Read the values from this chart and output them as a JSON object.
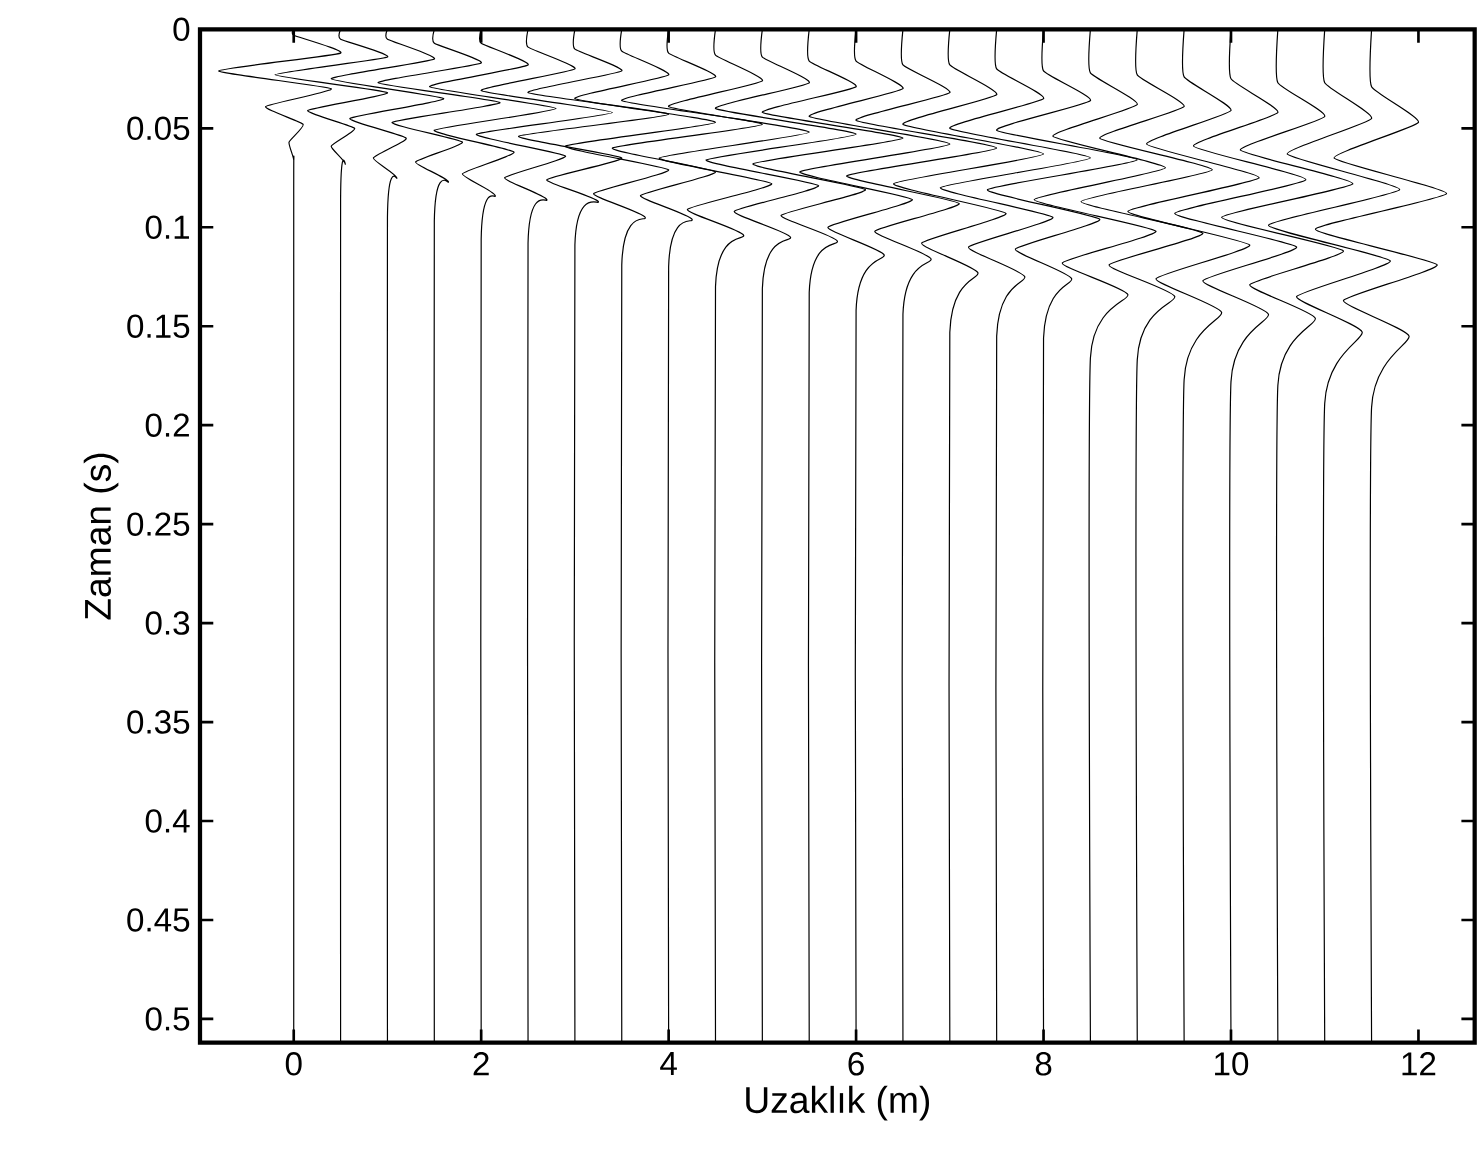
{
  "chart_data": {
    "type": "line",
    "xlabel": "Uzaklık (m)",
    "ylabel": "Zaman (s)",
    "xlim": [
      -1.0,
      12.6
    ],
    "ylim": [
      0.512,
      0
    ],
    "xticks": [
      0,
      2,
      4,
      6,
      8,
      10,
      12
    ],
    "yticks": [
      0,
      0.05,
      0.1,
      0.15,
      0.2,
      0.25,
      0.3,
      0.35,
      0.4,
      0.45,
      0.5
    ],
    "grid": false,
    "marker": "none",
    "line_style": "solid",
    "series": [
      {
        "color": "#000000",
        "x": [
          0,
          0,
          0.5,
          -0.8,
          0.4,
          -0.3,
          0.1,
          -0.05,
          0,
          0,
          0
        ],
        "values": [
          0,
          0.003,
          0.012,
          0.021,
          0.03,
          0.039,
          0.048,
          0.057,
          0.066,
          0.084,
          0.512
        ]
      },
      {
        "color": "#000000",
        "x": [
          0.5,
          0.5,
          1.0,
          -0.2,
          1.0,
          0.15,
          0.65,
          0.4,
          0.55,
          0.5,
          0.5
        ],
        "values": [
          0,
          0.005,
          0.014,
          0.023,
          0.032,
          0.041,
          0.05,
          0.059,
          0.068,
          0.086,
          0.512
        ]
      },
      {
        "color": "#000000",
        "x": [
          1,
          1,
          1.5,
          0.4,
          1.6,
          0.6,
          1.2,
          0.85,
          1.1,
          1,
          1
        ],
        "values": [
          0,
          0.005,
          0.015,
          0.025,
          0.035,
          0.045,
          0.055,
          0.065,
          0.075,
          0.095,
          0.512
        ]
      },
      {
        "color": "#000000",
        "x": [
          1.5,
          1.5,
          2.0,
          0.9,
          2.2,
          1.05,
          1.8,
          1.3,
          1.65,
          1.5,
          1.5
        ],
        "values": [
          0,
          0.007,
          0.017,
          0.027,
          0.037,
          0.047,
          0.057,
          0.067,
          0.077,
          0.097,
          0.512
        ]
      },
      {
        "color": "#000000",
        "x": [
          2,
          2,
          2.5,
          1.45,
          2.8,
          1.5,
          2.35,
          1.8,
          2.15,
          2,
          2
        ],
        "values": [
          0,
          0.007,
          0.018,
          0.029,
          0.04,
          0.051,
          0.062,
          0.073,
          0.084,
          0.106,
          0.512
        ]
      },
      {
        "color": "#000000",
        "x": [
          2.5,
          2.5,
          3.0,
          2.0,
          3.4,
          1.95,
          2.9,
          2.25,
          2.7,
          2.5,
          2.5
        ],
        "values": [
          0,
          0.009,
          0.02,
          0.031,
          0.042,
          0.053,
          0.064,
          0.075,
          0.086,
          0.108,
          0.512
        ]
      },
      {
        "color": "#000000",
        "x": [
          3,
          3,
          3.5,
          2.5,
          4.0,
          2.4,
          3.5,
          2.7,
          3.25,
          3,
          3
        ],
        "values": [
          0,
          0.01,
          0.021,
          0.032,
          0.043,
          0.054,
          0.065,
          0.076,
          0.087,
          0.109,
          0.512
        ]
      },
      {
        "color": "#000000",
        "x": [
          3.5,
          3.5,
          4.0,
          3.0,
          4.5,
          2.9,
          4.0,
          3.2,
          3.75,
          3.5,
          3.5
        ],
        "values": [
          0,
          0.011,
          0.023,
          0.035,
          0.047,
          0.059,
          0.071,
          0.083,
          0.095,
          0.119,
          0.512
        ]
      },
      {
        "color": "#000000",
        "x": [
          4,
          4,
          4.5,
          3.5,
          5.0,
          3.4,
          4.5,
          3.7,
          4.25,
          4,
          4
        ],
        "values": [
          0,
          0.012,
          0.024,
          0.036,
          0.048,
          0.06,
          0.072,
          0.084,
          0.096,
          0.12,
          0.512
        ]
      },
      {
        "color": "#000000",
        "x": [
          4.5,
          4.5,
          5.0,
          4.0,
          5.5,
          3.9,
          5.1,
          4.2,
          4.8,
          4.5,
          4.5
        ],
        "values": [
          0,
          0.013,
          0.026,
          0.039,
          0.052,
          0.065,
          0.078,
          0.091,
          0.104,
          0.13,
          0.512
        ]
      },
      {
        "color": "#000000",
        "x": [
          5,
          5,
          5.5,
          4.5,
          6.0,
          4.4,
          5.6,
          4.7,
          5.3,
          5,
          5
        ],
        "values": [
          0,
          0.014,
          0.027,
          0.04,
          0.053,
          0.066,
          0.079,
          0.092,
          0.105,
          0.131,
          0.512
        ]
      },
      {
        "color": "#000000",
        "x": [
          5.5,
          5.5,
          6.0,
          5.0,
          6.5,
          4.9,
          6.1,
          5.2,
          5.8,
          5.5,
          5.5
        ],
        "values": [
          0,
          0.016,
          0.029,
          0.042,
          0.055,
          0.068,
          0.081,
          0.094,
          0.107,
          0.133,
          0.512
        ]
      },
      {
        "color": "#000000",
        "x": [
          6,
          6,
          6.5,
          5.5,
          7.0,
          5.4,
          6.6,
          5.7,
          6.3,
          6,
          6
        ],
        "values": [
          0,
          0.016,
          0.03,
          0.044,
          0.058,
          0.072,
          0.086,
          0.1,
          0.114,
          0.142,
          0.512
        ]
      },
      {
        "color": "#000000",
        "x": [
          6.5,
          6.5,
          7.0,
          6.0,
          7.5,
          5.9,
          7.1,
          6.2,
          6.8,
          6.5,
          6.5
        ],
        "values": [
          0,
          0.018,
          0.032,
          0.046,
          0.06,
          0.074,
          0.088,
          0.102,
          0.116,
          0.144,
          0.512
        ]
      },
      {
        "color": "#000000",
        "x": [
          7,
          7,
          7.5,
          6.5,
          8.0,
          6.4,
          7.6,
          6.7,
          7.3,
          7,
          7
        ],
        "values": [
          0,
          0.018,
          0.033,
          0.048,
          0.063,
          0.078,
          0.093,
          0.108,
          0.123,
          0.153,
          0.512
        ]
      },
      {
        "color": "#000000",
        "x": [
          7.5,
          7.5,
          8.0,
          7.0,
          8.5,
          6.9,
          8.1,
          7.2,
          7.8,
          7.5,
          7.5
        ],
        "values": [
          0,
          0.02,
          0.035,
          0.05,
          0.065,
          0.08,
          0.095,
          0.11,
          0.125,
          0.155,
          0.512
        ]
      },
      {
        "color": "#000000",
        "x": [
          8,
          8,
          8.5,
          7.5,
          9.0,
          7.4,
          8.6,
          7.7,
          8.3,
          8,
          8
        ],
        "values": [
          0,
          0.021,
          0.036,
          0.051,
          0.066,
          0.081,
          0.096,
          0.111,
          0.126,
          0.156,
          0.512
        ]
      },
      {
        "color": "#000000",
        "x": [
          8.5,
          8.5,
          9.0,
          8.1,
          9.3,
          7.9,
          9.2,
          8.2,
          8.9,
          8.5,
          8.5
        ],
        "values": [
          0,
          0.022,
          0.038,
          0.054,
          0.07,
          0.086,
          0.102,
          0.118,
          0.134,
          0.166,
          0.512
        ]
      },
      {
        "color": "#000000",
        "x": [
          9,
          9,
          9.5,
          8.6,
          9.8,
          8.4,
          9.7,
          8.7,
          9.4,
          9,
          9
        ],
        "values": [
          0,
          0.023,
          0.039,
          0.055,
          0.071,
          0.087,
          0.103,
          0.119,
          0.135,
          0.167,
          0.512
        ]
      },
      {
        "color": "#000000",
        "x": [
          9.5,
          9.5,
          10.0,
          9.1,
          10.3,
          8.9,
          10.2,
          9.2,
          9.9,
          9.5,
          9.5
        ],
        "values": [
          0,
          0.024,
          0.041,
          0.058,
          0.075,
          0.092,
          0.109,
          0.126,
          0.143,
          0.177,
          0.512
        ]
      },
      {
        "color": "#000000",
        "x": [
          10,
          10,
          10.5,
          9.6,
          10.8,
          9.4,
          10.7,
          9.7,
          10.4,
          10,
          10
        ],
        "values": [
          0,
          0.025,
          0.042,
          0.059,
          0.076,
          0.093,
          0.11,
          0.127,
          0.144,
          0.178,
          0.512
        ]
      },
      {
        "color": "#000000",
        "x": [
          10.5,
          10.5,
          11.0,
          10.1,
          11.3,
          9.9,
          11.2,
          10.2,
          10.9,
          10.5,
          10.5
        ],
        "values": [
          0,
          0.027,
          0.044,
          0.061,
          0.078,
          0.095,
          0.112,
          0.129,
          0.146,
          0.18,
          0.512
        ]
      },
      {
        "color": "#000000",
        "x": [
          11,
          11,
          11.5,
          10.6,
          11.8,
          10.4,
          11.7,
          10.7,
          11.4,
          11,
          11
        ],
        "values": [
          0,
          0.027,
          0.045,
          0.063,
          0.081,
          0.099,
          0.117,
          0.135,
          0.153,
          0.189,
          0.512
        ]
      },
      {
        "color": "#000000",
        "x": [
          11.5,
          11.5,
          12.0,
          11.1,
          12.3,
          10.9,
          12.2,
          11.2,
          11.9,
          11.5,
          11.5
        ],
        "values": [
          0,
          0.029,
          0.047,
          0.065,
          0.083,
          0.101,
          0.119,
          0.137,
          0.155,
          0.191,
          0.512
        ]
      }
    ]
  }
}
